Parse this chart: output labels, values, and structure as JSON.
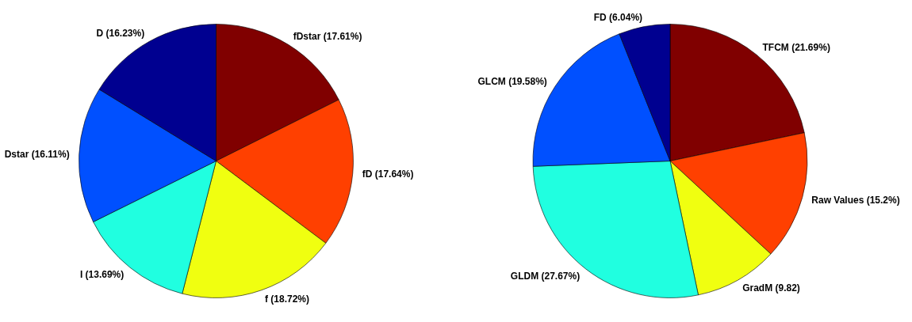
{
  "chart_data": [
    {
      "type": "pie",
      "categories": [
        "fDstar (17.61%)",
        "fD (17.64%)",
        "f (18.72%)",
        "I (13.69%)",
        "Dstar (16.11%)",
        "D (16.23%)"
      ],
      "values": [
        17.61,
        17.64,
        18.72,
        13.69,
        16.11,
        16.23
      ],
      "colors": [
        "#800000",
        "#ff4000",
        "#f0ff10",
        "#20ffe0",
        "#0050ff",
        "#000090"
      ]
    },
    {
      "type": "pie",
      "categories": [
        "TFCM (21.69%)",
        "Raw Values (15.2%)",
        "GradM (9.82)",
        "GLDM (27.67%)",
        "GLCM (19.58%)",
        "FD (6.04%)"
      ],
      "values": [
        21.69,
        15.2,
        9.82,
        27.67,
        19.58,
        6.04
      ],
      "colors": [
        "#800000",
        "#ff4000",
        "#f0ff10",
        "#20ffe0",
        "#0050ff",
        "#000090"
      ]
    }
  ]
}
